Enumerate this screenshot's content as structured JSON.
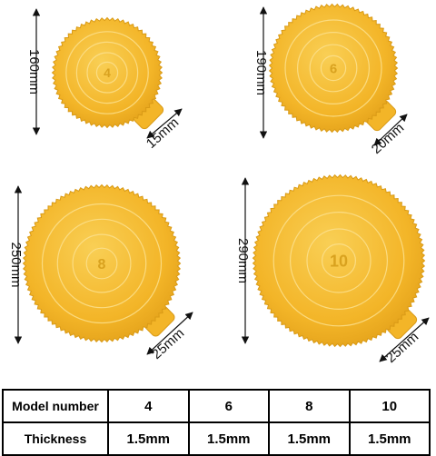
{
  "boards": [
    {
      "number": "4",
      "diameter_label": "160mm",
      "tab_label": "15mm"
    },
    {
      "number": "6",
      "diameter_label": "190mm",
      "tab_label": "20mm"
    },
    {
      "number": "8",
      "diameter_label": "250mm",
      "tab_label": "25mm"
    },
    {
      "number": "10",
      "diameter_label": "290mm",
      "tab_label": "25mm"
    }
  ],
  "table": {
    "model_label": "Model number",
    "thickness_label": "Thickness",
    "models": [
      "4",
      "6",
      "8",
      "10"
    ],
    "thickness": [
      "1.5mm",
      "1.5mm",
      "1.5mm",
      "1.5mm"
    ]
  },
  "colors": {
    "gold": "#f3b528",
    "gold_light": "#f9cf55",
    "gold_dark": "#d99a16",
    "ring": "#fbe08e"
  }
}
